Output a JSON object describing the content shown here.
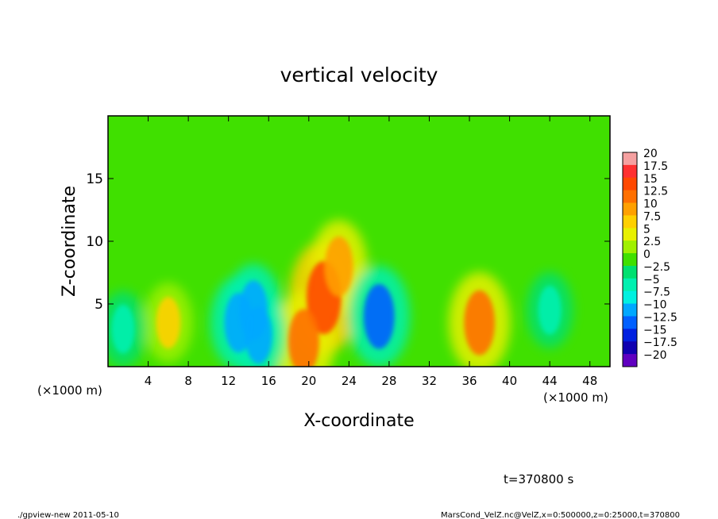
{
  "chart_data": {
    "type": "heatmap",
    "title": "vertical velocity",
    "xlabel": "X-coordinate",
    "ylabel": "Z-coordinate",
    "x_unit": "(×1000 m)",
    "y_unit": "(×1000 m)",
    "xlim": [
      0,
      50
    ],
    "ylim": [
      0,
      20
    ],
    "x_ticks": [
      4,
      8,
      12,
      16,
      20,
      24,
      28,
      32,
      36,
      40,
      44,
      48
    ],
    "y_ticks": [
      5,
      10,
      15
    ],
    "colorbar": {
      "levels": [
        20,
        17.5,
        15,
        12.5,
        10,
        7.5,
        5,
        2.5,
        0,
        -2.5,
        -5,
        -7.5,
        -10,
        -12.5,
        -15,
        -17.5,
        -20
      ],
      "labels": [
        "20",
        "17.5",
        "15",
        "12.5",
        "10",
        "7.5",
        "5",
        "2.5",
        "0",
        "−2.5",
        "−5",
        "−7.5",
        "−10",
        "−12.5",
        "−15",
        "−17.5",
        "−20"
      ],
      "colors": [
        "#f5a0a0",
        "#ff3030",
        "#ff4800",
        "#ff7000",
        "#ffa000",
        "#ffd000",
        "#e8f000",
        "#a0f000",
        "#40e000",
        "#00e070",
        "#00f0b0",
        "#00f0e0",
        "#00a8ff",
        "#0060ff",
        "#0020e0",
        "#1000b0",
        "#6000c0"
      ]
    },
    "features": [
      {
        "label": "updraft",
        "x": 21.5,
        "z": 5.5,
        "value": 15
      },
      {
        "label": "updraft",
        "x": 23,
        "z": 8,
        "value": 10
      },
      {
        "label": "updraft",
        "x": 19.5,
        "z": 2,
        "value": 12
      },
      {
        "label": "updraft",
        "x": 6,
        "z": 3.5,
        "value": 7
      },
      {
        "label": "updraft",
        "x": 37,
        "z": 3.5,
        "value": 12
      },
      {
        "label": "downdraft",
        "x": 13,
        "z": 3.5,
        "value": -10
      },
      {
        "label": "downdraft",
        "x": 14.5,
        "z": 4.5,
        "value": -10
      },
      {
        "label": "downdraft",
        "x": 15,
        "z": 2.5,
        "value": -9
      },
      {
        "label": "downdraft",
        "x": 27,
        "z": 4,
        "value": -12
      },
      {
        "label": "downdraft",
        "x": 1.5,
        "z": 3,
        "value": -6
      },
      {
        "label": "downdraft",
        "x": 44,
        "z": 4.5,
        "value": -6
      }
    ]
  },
  "time_label": "t=370800 s",
  "footer_left": "./gpview-new   2011-05-10",
  "footer_right": "MarsCond_VelZ.nc@VelZ,x=0:500000,z=0:25000,t=370800"
}
